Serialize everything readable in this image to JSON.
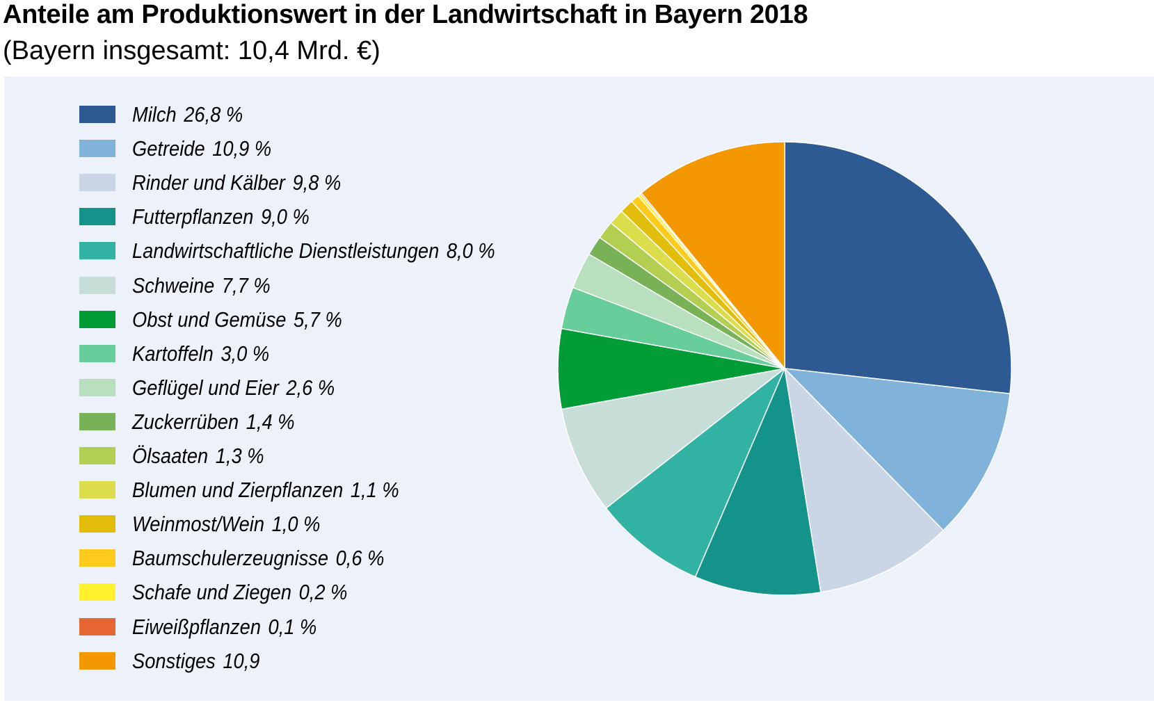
{
  "title": "Anteile am Produktionswert in der Landwirtschaft in Bayern 2018",
  "subtitle": "(Bayern insgesamt: 10,4 Mrd. €)",
  "chart_data": {
    "type": "pie",
    "title": "Anteile am Produktionswert in der Landwirtschaft in Bayern 2018",
    "subtitle": "(Bayern insgesamt: 10,4 Mrd. €)",
    "legend_position": "left",
    "slices": [
      {
        "label": "Milch",
        "value_text": "26,8 %",
        "value": 26.8,
        "color": "#2d5a92"
      },
      {
        "label": "Getreide",
        "value_text": "10,9 %",
        "value": 10.9,
        "color": "#80b2da"
      },
      {
        "label": "Rinder und Kälber",
        "value_text": "9,8 %",
        "value": 9.8,
        "color": "#cad6e5"
      },
      {
        "label": "Futterpflanzen",
        "value_text": "9,0 %",
        "value": 9.0,
        "color": "#13938a"
      },
      {
        "label": "Landwirtschaftliche Dienstleistungen",
        "value_text": "8,0 %",
        "value": 8.0,
        "color": "#32b2a3"
      },
      {
        "label": "Schweine",
        "value_text": "7,7 %",
        "value": 7.7,
        "color": "#c7ddd8"
      },
      {
        "label": "Obst und Gemüse",
        "value_text": "5,7 %",
        "value": 5.7,
        "color": "#009d37"
      },
      {
        "label": "Kartoffeln",
        "value_text": "3,0 %",
        "value": 3.0,
        "color": "#67cd9a"
      },
      {
        "label": "Geflügel und Eier",
        "value_text": "2,6 %",
        "value": 2.6,
        "color": "#b8dfbe"
      },
      {
        "label": "Zuckerrüben",
        "value_text": "1,4 %",
        "value": 1.4,
        "color": "#78b257"
      },
      {
        "label": "Ölsaaten",
        "value_text": "1,3 %",
        "value": 1.3,
        "color": "#b3cf51"
      },
      {
        "label": "Blumen und Zierpflanzen",
        "value_text": "1,1 %",
        "value": 1.1,
        "color": "#dcdd4b"
      },
      {
        "label": "Weinmost/Wein",
        "value_text": "1,0 %",
        "value": 1.0,
        "color": "#e3bd0b"
      },
      {
        "label": "Baumschulerzeugnisse",
        "value_text": "0,6 %",
        "value": 0.6,
        "color": "#fecb1d"
      },
      {
        "label": "Schafe und Ziegen",
        "value_text": "0,2 %",
        "value": 0.2,
        "color": "#fff12b"
      },
      {
        "label": "Eiweißpflanzen",
        "value_text": "0,1 %",
        "value": 0.1,
        "color": "#e56533"
      },
      {
        "label": "Sonstiges",
        "value_text": "10,9",
        "value": 10.9,
        "color": "#f39800"
      }
    ]
  }
}
